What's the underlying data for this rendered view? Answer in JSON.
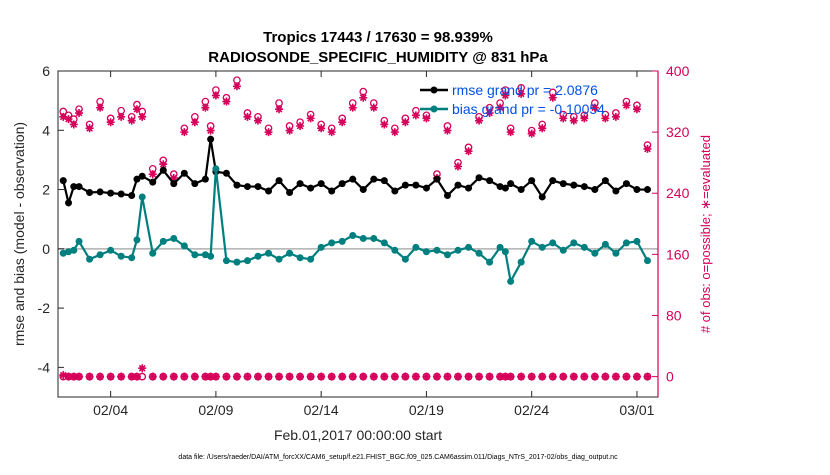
{
  "chart_data": {
    "type": "line",
    "title": "Tropics 17443 / 17630 = 98.939%",
    "subtitle": "RADIOSONDE_SPECIFIC_HUMIDITY @ 831 hPa",
    "xlabel": "Feb.01,2017 00:00:00 start",
    "ylabel": "rmse and bias (model - observation)",
    "ylabel_right": "# of obs: o=possible; ∗=evaluated",
    "xlim": [
      1.5,
      30.0
    ],
    "ylim": [
      -5,
      6
    ],
    "ylim_right": [
      -26.67,
      400
    ],
    "x_ticks": [
      4,
      9,
      14,
      19,
      24,
      29
    ],
    "x_tick_labels": [
      "02/04",
      "02/09",
      "02/14",
      "02/19",
      "02/24",
      "03/01"
    ],
    "y_ticks": [
      -4,
      -2,
      0,
      2,
      4,
      6
    ],
    "y_tick_labels": [
      "-4",
      "-2",
      "0",
      "2",
      "4",
      "6"
    ],
    "y_ticks_right": [
      0,
      80,
      160,
      240,
      320,
      400
    ],
    "y_tick_labels_right": [
      "0",
      "80",
      "160",
      "240",
      "320",
      "400"
    ],
    "footer": "data file: /Users/raeder/DAI/ATM_forcXX/CAM6_setup/f.e21.FHIST_BGC.f09_025.CAM6assim.011/Diags_NTrS_2017-02/obs_diag_output.nc",
    "x": [
      1.75,
      2.0,
      2.25,
      2.5,
      3.0,
      3.5,
      4.0,
      4.5,
      5.0,
      5.25,
      5.5,
      6.0,
      6.5,
      7.0,
      7.5,
      8.0,
      8.5,
      8.75,
      9.0,
      9.5,
      10.0,
      10.5,
      11.0,
      11.5,
      12.0,
      12.5,
      13.0,
      13.5,
      14.0,
      14.5,
      15.0,
      15.5,
      16.0,
      16.5,
      17.0,
      17.5,
      18.0,
      18.5,
      19.0,
      19.5,
      20.0,
      20.5,
      21.0,
      21.5,
      22.0,
      22.5,
      22.75,
      23.0,
      23.5,
      24.0,
      24.5,
      25.0,
      25.5,
      26.0,
      26.5,
      27.0,
      27.5,
      28.0,
      28.5,
      29.0,
      29.5
    ],
    "series": [
      {
        "name": "rmse grand pr = 2.0876",
        "color": "#000000",
        "values": [
          2.3,
          1.55,
          2.1,
          2.1,
          1.9,
          1.92,
          1.88,
          1.85,
          1.8,
          2.35,
          2.45,
          2.25,
          2.65,
          2.2,
          2.55,
          2.2,
          2.35,
          3.7,
          2.6,
          2.55,
          2.15,
          2.1,
          2.1,
          1.95,
          2.3,
          1.9,
          2.2,
          2.05,
          2.2,
          1.95,
          2.2,
          2.35,
          2.0,
          2.35,
          2.3,
          1.95,
          2.15,
          2.15,
          2.05,
          2.35,
          1.8,
          2.15,
          2.05,
          2.4,
          2.3,
          2.1,
          2.05,
          2.2,
          2.0,
          2.3,
          1.75,
          2.3,
          2.2,
          2.15,
          2.1,
          2.0,
          2.3,
          1.95,
          2.2,
          2.0,
          2.0
        ],
        "gaps_after_index": [
          3,
          11,
          16,
          19,
          46
        ]
      },
      {
        "name": "bias grand pr = -0.10054",
        "color": "#007f7f",
        "values": [
          -0.15,
          -0.1,
          -0.05,
          0.25,
          -0.35,
          -0.2,
          -0.05,
          -0.25,
          -0.3,
          0.3,
          1.75,
          -0.15,
          0.25,
          0.35,
          0.1,
          -0.2,
          -0.2,
          -0.25,
          2.7,
          -0.4,
          -0.45,
          -0.4,
          -0.25,
          -0.15,
          -0.35,
          -0.15,
          -0.3,
          -0.35,
          0.05,
          0.2,
          0.25,
          0.45,
          0.35,
          0.35,
          0.2,
          -0.05,
          -0.35,
          0.05,
          -0.1,
          -0.05,
          -0.2,
          -0.05,
          0.05,
          -0.15,
          -0.45,
          0.05,
          -0.1,
          -1.1,
          -0.45,
          0.25,
          0.05,
          0.2,
          -0.05,
          0.2,
          0.05,
          -0.15,
          0.15,
          -0.15,
          0.2,
          0.25,
          -0.4
        ],
        "gaps_after_index": [
          3,
          11,
          16,
          19,
          46
        ]
      },
      {
        "name": "# of obs possible",
        "color": "#d6005a",
        "axis": "right",
        "marker": "circle",
        "values": [
          347,
          342,
          337,
          350,
          330,
          360,
          338,
          348,
          340,
          356,
          347,
          272,
          283,
          265,
          325,
          340,
          360,
          328,
          375,
          365,
          388,
          345,
          340,
          325,
          358,
          328,
          333,
          343,
          330,
          325,
          338,
          358,
          373,
          358,
          335,
          325,
          338,
          348,
          342,
          265,
          328,
          280,
          300,
          340,
          352,
          358,
          375,
          325,
          378,
          322,
          330,
          372,
          343,
          340,
          342,
          358,
          343,
          345,
          360,
          355,
          303
        ],
        "secondary_values": [
          0,
          0,
          0,
          0,
          0,
          0,
          0,
          0,
          0,
          0,
          0,
          0,
          0,
          0,
          0,
          0,
          0,
          0,
          0,
          0,
          0,
          0,
          0,
          0,
          0,
          0,
          0,
          0,
          0,
          0,
          0,
          0,
          0,
          0,
          0,
          0,
          0,
          0,
          0,
          0,
          0,
          0,
          0,
          0,
          0,
          0,
          0,
          0,
          0,
          0,
          0,
          0,
          0,
          0,
          0,
          0,
          0,
          0,
          0,
          0,
          0
        ]
      },
      {
        "name": "# of obs evaluated",
        "color": "#d6005a",
        "axis": "right",
        "marker": "star",
        "values": [
          340,
          337,
          330,
          345,
          325,
          352,
          333,
          340,
          335,
          350,
          340,
          265,
          278,
          260,
          320,
          333,
          352,
          322,
          368,
          360,
          380,
          340,
          335,
          320,
          350,
          322,
          328,
          338,
          325,
          320,
          333,
          352,
          365,
          352,
          330,
          320,
          333,
          342,
          338,
          260,
          322,
          275,
          295,
          335,
          345,
          352,
          368,
          320,
          370,
          318,
          325,
          365,
          338,
          335,
          338,
          352,
          338,
          340,
          355,
          350,
          298
        ],
        "secondary_values": [
          2,
          0,
          0,
          0,
          0,
          0,
          0,
          0,
          0,
          0,
          11,
          0,
          0,
          0,
          0,
          0,
          0,
          0,
          0,
          0,
          0,
          0,
          0,
          0,
          0,
          0,
          0,
          0,
          0,
          0,
          0,
          0,
          0,
          0,
          0,
          0,
          0,
          0,
          0,
          0,
          0,
          0,
          0,
          0,
          0,
          0,
          0,
          0,
          0,
          0,
          0,
          0,
          0,
          0,
          0,
          0,
          0,
          0,
          0,
          0,
          0
        ]
      }
    ],
    "legend": {
      "placement": "top-right",
      "entries": [
        "rmse grand pr = 2.0876",
        "bias grand pr = -0.10054"
      ]
    }
  }
}
